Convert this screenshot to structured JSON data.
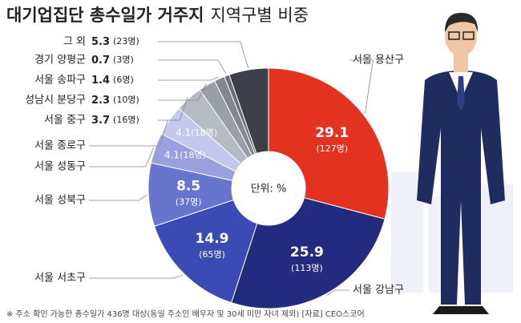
{
  "chart_data": {
    "type": "donut",
    "title": "대기업집단 총수일가 거주지",
    "subtitle": "지역구별 비중",
    "center_label": "단위: %",
    "categories": [
      "서울 용산구",
      "서울 강남구",
      "서울 서초구",
      "서울 성북구",
      "서울 성동구",
      "서울 종로구",
      "서울 중구",
      "성남시 분당구",
      "서울 송파구",
      "경기 양평군",
      "그 외"
    ],
    "values": [
      29.1,
      25.9,
      14.9,
      8.5,
      4.1,
      4.1,
      3.7,
      2.3,
      1.4,
      0.7,
      5.3
    ],
    "count_labels": [
      "(127명)",
      "(113명)",
      "(65명)",
      "(37명)",
      "(18명)",
      "(18명)",
      "(16명)",
      "(10명)",
      "(6명)",
      "(3명)",
      "(23명)"
    ],
    "colors": [
      "#e3321f",
      "#222b7e",
      "#3b4bb3",
      "#6775cc",
      "#98a1de",
      "#c3c8ec",
      "#b6bac2",
      "#9a9ea7",
      "#82868f",
      "#6b6f78",
      "#3d4048"
    ],
    "footnote": "※ 주소 확인 가능한 총수일가 436명 대상(동일 주소인 배우자 및 30세 미만 자녀 제외)  [자료] CEO스코어"
  }
}
